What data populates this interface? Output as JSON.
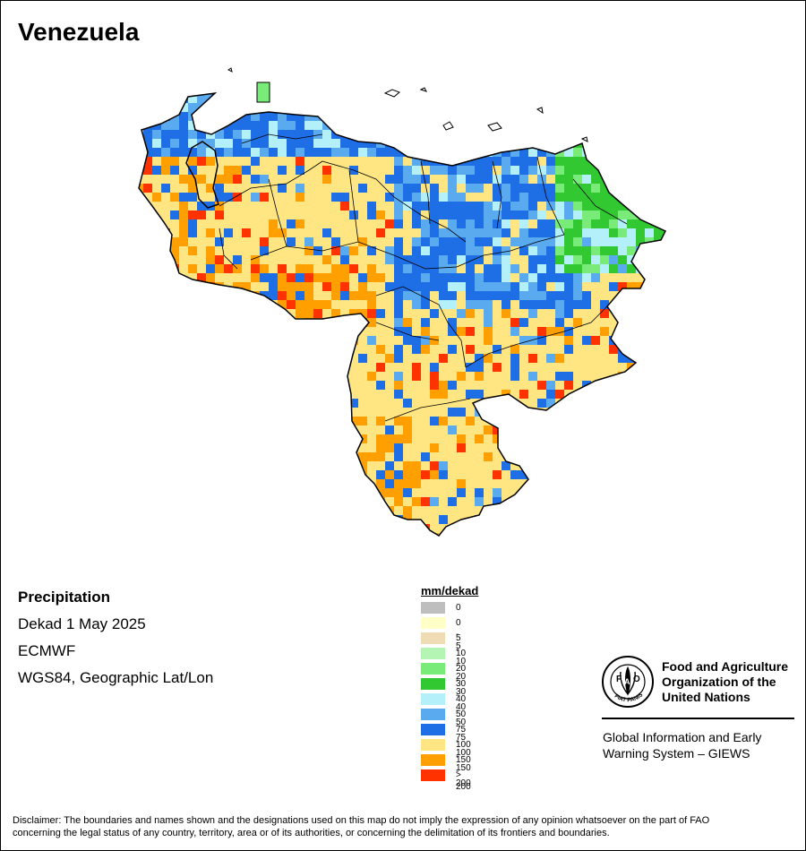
{
  "title": "Venezuela",
  "info": {
    "variable": "Precipitation",
    "period": "Dekad 1 May 2025",
    "source": "ECMWF",
    "projection": "WGS84, Geographic Lat/Lon"
  },
  "legend": {
    "title": "mm/dekad",
    "classes": [
      {
        "label": "0",
        "color": "#bebebe"
      },
      {
        "label": "0 - 5",
        "color": "#ffffc8"
      },
      {
        "label": "5 - 10",
        "color": "#f0dcb4"
      },
      {
        "label": "10 - 20",
        "color": "#b4f5b4"
      },
      {
        "label": "20 - 30",
        "color": "#78eb78"
      },
      {
        "label": "30 - 40",
        "color": "#32c832"
      },
      {
        "label": "40 - 50",
        "color": "#b4f0fa"
      },
      {
        "label": "50 - 75",
        "color": "#5aaaf0"
      },
      {
        "label": "75 - 100",
        "color": "#1e6ee6"
      },
      {
        "label": "100 - 150",
        "color": "#ffe682"
      },
      {
        "label": "150 - 200",
        "color": "#ffa000"
      },
      {
        "label": "> 200",
        "color": "#ff3200"
      }
    ]
  },
  "org": {
    "logo_icon": "fao-logo-icon",
    "logo_text": "FIAT PANIS",
    "name_line1": "Food and Agriculture",
    "name_line2": "Organization of the",
    "name_line3": "United Nations",
    "giews_line1": "Global Information and Early",
    "giews_line2": "Warning System – GIEWS"
  },
  "disclaimer_line1": "Disclaimer: The boundaries and names shown and the designations used on this map do not imply the expression of any opinion whatsoever on the part of FAO",
  "disclaimer_line2": "concerning the legal status of any country, territory, area or of its authorities, or concerning the delimitation of its frontiers and boundaries."
}
